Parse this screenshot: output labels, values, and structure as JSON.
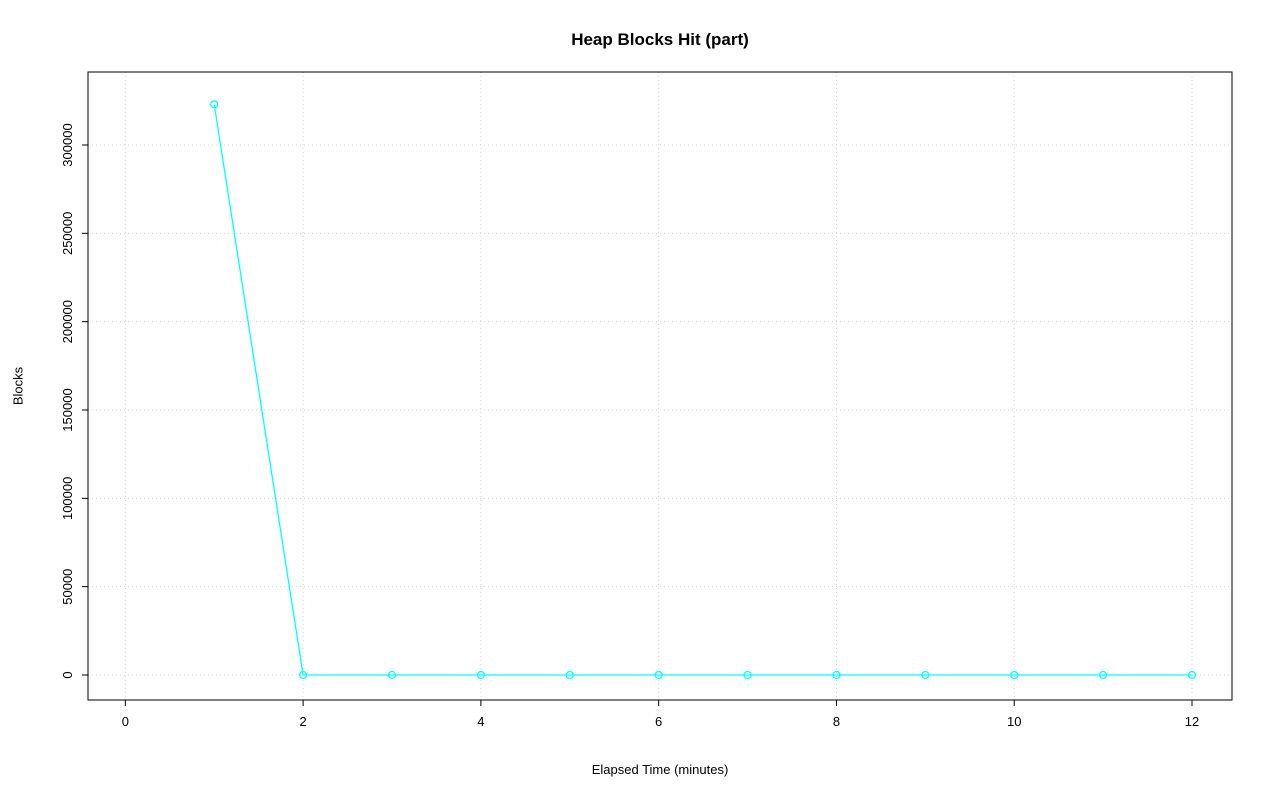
{
  "chart_data": {
    "type": "line",
    "title": "Heap Blocks Hit (part)",
    "xlabel": "Elapsed Time (minutes)",
    "ylabel": "Blocks",
    "x": [
      1,
      2,
      3,
      4,
      5,
      6,
      7,
      8,
      9,
      10,
      11,
      12
    ],
    "values": [
      323000,
      0,
      0,
      0,
      0,
      0,
      0,
      0,
      0,
      0,
      0,
      0
    ],
    "x_ticks": [
      0,
      2,
      4,
      6,
      8,
      10,
      12
    ],
    "y_ticks": [
      0,
      50000,
      100000,
      150000,
      200000,
      250000,
      300000
    ],
    "x_range": [
      -0.42,
      12.45
    ],
    "y_range": [
      -14151,
      341320
    ],
    "grid": true,
    "legend": "none",
    "marker": "open-circle",
    "line_color": "#00FFFF",
    "grid_color": "#D3D3D3",
    "axis_color": "#000000",
    "background_color": "#FFFFFF"
  }
}
